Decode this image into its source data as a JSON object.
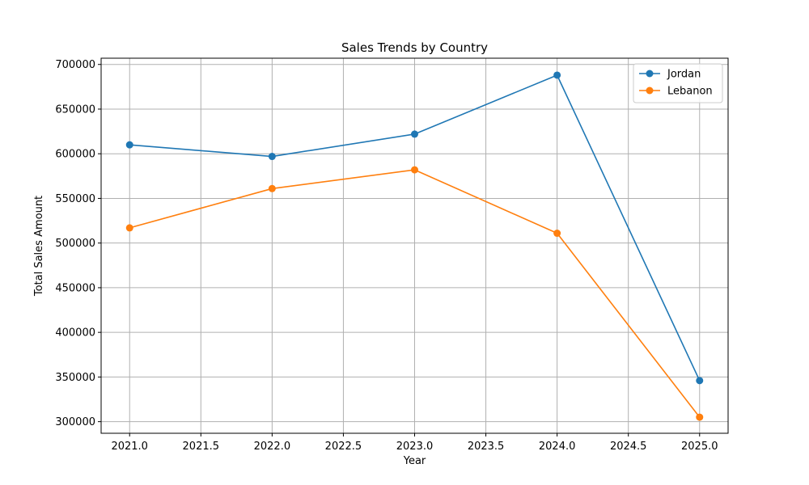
{
  "chart_data": {
    "type": "line",
    "title": "Sales Trends by Country",
    "xlabel": "Year",
    "ylabel": "Total Sales Amount",
    "x": [
      2021,
      2022,
      2023,
      2024,
      2025
    ],
    "xlim": [
      2020.8,
      2025.2
    ],
    "ylim": [
      287000,
      707000
    ],
    "x_ticks": [
      "2021.0",
      "2021.5",
      "2022.0",
      "2022.5",
      "2023.0",
      "2023.5",
      "2024.0",
      "2024.5",
      "2025.0"
    ],
    "y_ticks": [
      "300000",
      "350000",
      "400000",
      "450000",
      "500000",
      "550000",
      "600000",
      "650000",
      "700000"
    ],
    "grid": true,
    "legend_position": "top-right",
    "series": [
      {
        "name": "Jordan",
        "color": "#1f77b4",
        "values": [
          610000,
          597000,
          622000,
          688000,
          346000
        ]
      },
      {
        "name": "Lebanon",
        "color": "#ff7f0e",
        "values": [
          517000,
          561000,
          582000,
          511000,
          305000
        ]
      }
    ]
  }
}
